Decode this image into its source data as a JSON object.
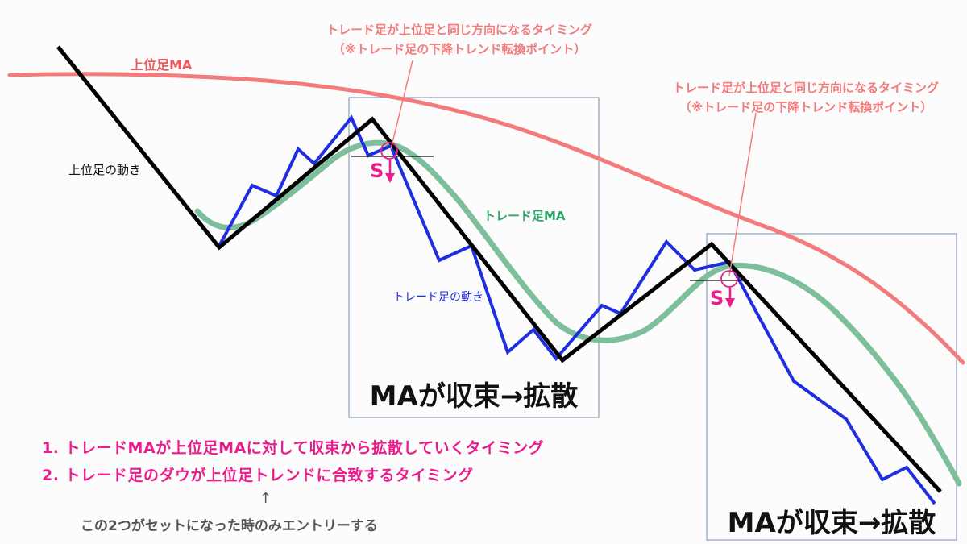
{
  "labels": {
    "higher_ma": "上位足MA",
    "higher_move": "上位足の動き",
    "trade_ma": "トレード足MA",
    "trade_move": "トレード足の動き",
    "timing_line1": "トレード足が上位足と同じ方向になるタイミング",
    "timing_line2": "（※トレード足の下降トレンド転換ポイント）",
    "box_caption": "MAが収束→拡散",
    "signal": "S"
  },
  "conditions": [
    "1. トレードMAが上位足MAに対して収束から拡散していくタイミング",
    "2. トレード足のダウが上位足トレンドに合致するタイミング"
  ],
  "note": {
    "arrow": "↑",
    "text": "この2つがセットになった時のみエントリーする"
  },
  "colors": {
    "higher_ma": "#f47b7b",
    "trade_ma": "#7dbf9a",
    "higher_move": "#000000",
    "trade_move": "#1f2ee0",
    "accent": "#e91e8c",
    "annotation": "#f47b7b",
    "box_border": "#8a9fb5"
  }
}
